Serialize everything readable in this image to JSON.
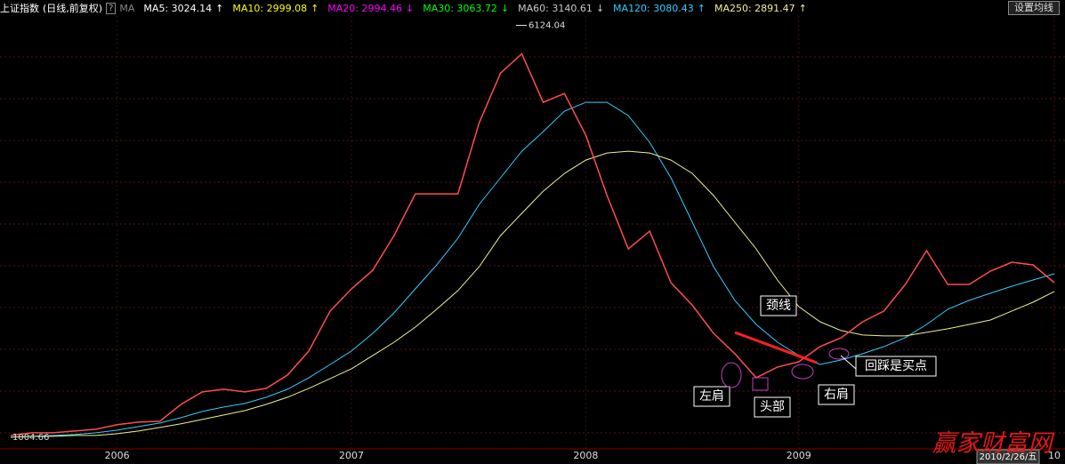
{
  "chart_data": {
    "type": "line",
    "title": "上证指数",
    "subtitle": "(日线,前复权)",
    "help": "?",
    "ma_label": "MA",
    "button": "设置均线",
    "cursor_date": "2010/2/26/五",
    "watermark": "赢家财富网",
    "high": 6124.04,
    "low": 1004.66,
    "color": "#ff4d4d",
    "ylim": [
      860,
      6240
    ],
    "categories": [
      null,
      null,
      null,
      null,
      null,
      "2006",
      null,
      null,
      null,
      null,
      null,
      null,
      null,
      null,
      null,
      null,
      "2007",
      null,
      null,
      null,
      null,
      null,
      null,
      null,
      null,
      null,
      null,
      "2008",
      null,
      null,
      null,
      null,
      null,
      null,
      null,
      null,
      null,
      "2009",
      null,
      null,
      null,
      null,
      null,
      null,
      null,
      null,
      null,
      null,
      null,
      "10"
    ],
    "values": [
      1027,
      1060,
      1060,
      1082,
      1104,
      1160,
      1193,
      1204,
      1414,
      1568,
      1601,
      1568,
      1612,
      1778,
      2076,
      2573,
      2849,
      3081,
      3511,
      4030,
      4030,
      4030,
      4913,
      5531,
      5769,
      5167,
      5277,
      4759,
      4008,
      3346,
      3566,
      2926,
      2645,
      2296,
      2043,
      1745,
      1877,
      1943,
      2131,
      2242,
      2440,
      2573,
      2904,
      3323,
      2904,
      2904,
      3069,
      3180,
      3147,
      2926
    ],
    "series": [
      {
        "name": "MA5: 3024.14",
        "trend": "↑",
        "color": "#ffffff"
      },
      {
        "name": "MA10: 2999.08",
        "trend": "↑",
        "color": "#ffff00"
      },
      {
        "name": "MA20: 2994.46",
        "trend": "↓",
        "color": "#ff00ff"
      },
      {
        "name": "MA30: 3063.72",
        "trend": "↓",
        "color": "#00ff00"
      },
      {
        "name": "MA60: 3140.61",
        "trend": "↓",
        "color": "#c8c8c8"
      },
      {
        "name": "MA120: 3080.43",
        "trend": "↑",
        "color": "#33ccff",
        "values": [
          1005,
          1016,
          1027,
          1038,
          1060,
          1093,
          1137,
          1182,
          1248,
          1325,
          1380,
          1424,
          1502,
          1601,
          1745,
          1910,
          2076,
          2296,
          2550,
          2849,
          3147,
          3478,
          3898,
          4229,
          4560,
          4803,
          5057,
          5167,
          5167,
          5002,
          4670,
          4229,
          3677,
          3125,
          2706,
          2407,
          2186,
          2021,
          1910,
          1966,
          2043,
          2131,
          2242,
          2407,
          2595,
          2706,
          2794,
          2882,
          2959,
          3036
        ]
      },
      {
        "name": "MA250: 2891.47",
        "trend": "↑",
        "color": "#f0f090",
        "values": [
          1005,
          1016,
          1016,
          1027,
          1027,
          1049,
          1082,
          1126,
          1171,
          1226,
          1281,
          1336,
          1413,
          1502,
          1612,
          1734,
          1855,
          2021,
          2186,
          2374,
          2595,
          2827,
          3125,
          3511,
          3787,
          4063,
          4284,
          4449,
          4538,
          4560,
          4538,
          4449,
          4284,
          4008,
          3677,
          3346,
          2959,
          2628,
          2440,
          2330,
          2275,
          2264,
          2264,
          2308,
          2352,
          2407,
          2462,
          2573,
          2683,
          2816
        ]
      }
    ],
    "annotations": [
      {
        "text": "颈线"
      },
      {
        "text": "左肩"
      },
      {
        "text": "头部"
      },
      {
        "text": "右肩"
      },
      {
        "text": "回踩是买点"
      }
    ]
  }
}
